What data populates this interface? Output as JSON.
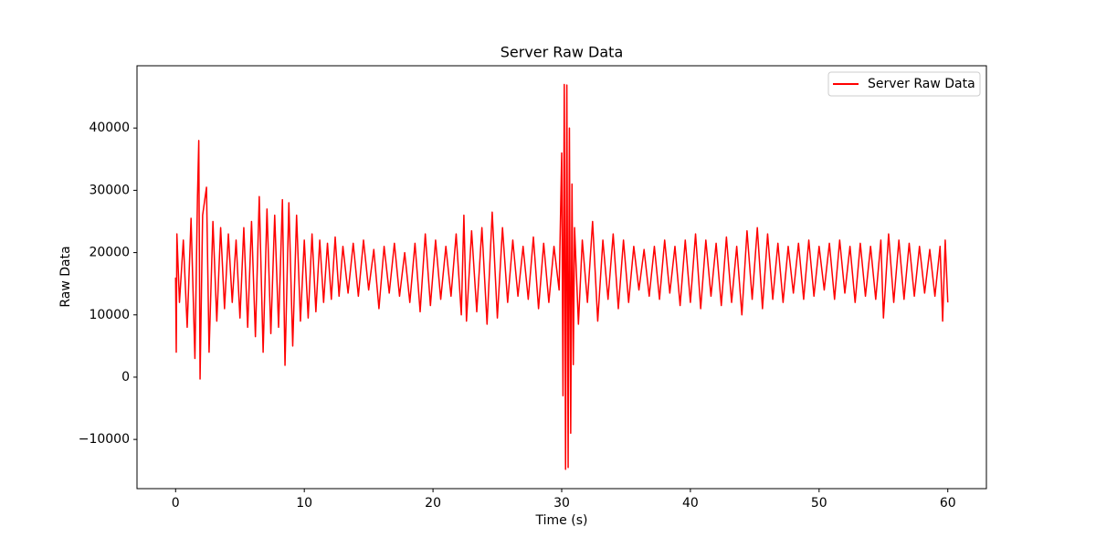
{
  "chart_data": {
    "type": "line",
    "title": "Server Raw Data",
    "x_label": "Time (s)",
    "y_label": "Raw Data",
    "x": [
      0,
      0.05,
      0.1,
      0.3,
      0.6,
      0.9,
      1.2,
      1.5,
      1.7,
      1.8,
      1.9,
      2.1,
      2.4,
      2.6,
      2.9,
      3.2,
      3.5,
      3.8,
      4.1,
      4.4,
      4.7,
      5.0,
      5.3,
      5.6,
      5.9,
      6.2,
      6.5,
      6.8,
      7.1,
      7.4,
      7.7,
      8.0,
      8.3,
      8.5,
      8.8,
      9.1,
      9.4,
      9.7,
      10.0,
      10.3,
      10.6,
      10.9,
      11.2,
      11.5,
      11.8,
      12.1,
      12.4,
      12.7,
      13.0,
      13.4,
      13.8,
      14.2,
      14.6,
      15.0,
      15.4,
      15.8,
      16.2,
      16.6,
      17.0,
      17.4,
      17.8,
      18.2,
      18.6,
      19.0,
      19.4,
      19.8,
      20.2,
      20.6,
      21.0,
      21.4,
      21.8,
      22.2,
      22.4,
      22.6,
      23.0,
      23.4,
      23.8,
      24.2,
      24.6,
      25.0,
      25.4,
      25.8,
      26.2,
      26.6,
      27.0,
      27.4,
      27.8,
      28.2,
      28.6,
      29.0,
      29.4,
      29.8,
      30.0,
      30.1,
      30.2,
      30.3,
      30.4,
      30.5,
      30.6,
      30.7,
      30.8,
      30.9,
      31.0,
      31.3,
      31.6,
      32.0,
      32.4,
      32.8,
      33.2,
      33.6,
      34.0,
      34.4,
      34.8,
      35.2,
      35.6,
      36.0,
      36.4,
      36.8,
      37.2,
      37.6,
      38.0,
      38.4,
      38.8,
      39.2,
      39.6,
      40.0,
      40.4,
      40.8,
      41.2,
      41.6,
      42.0,
      42.4,
      42.8,
      43.2,
      43.6,
      44.0,
      44.4,
      44.8,
      45.2,
      45.6,
      46.0,
      46.4,
      46.8,
      47.2,
      47.6,
      48.0,
      48.4,
      48.8,
      49.2,
      49.6,
      50.0,
      50.4,
      50.8,
      51.2,
      51.6,
      52.0,
      52.4,
      52.8,
      53.2,
      53.6,
      54.0,
      54.4,
      54.8,
      55.0,
      55.4,
      55.8,
      56.2,
      56.6,
      57.0,
      57.4,
      57.8,
      58.2,
      58.6,
      59.0,
      59.4,
      59.6,
      59.8,
      60.0
    ],
    "series": [
      {
        "name": "Server Raw Data",
        "color": "#ff0000",
        "values": [
          16000,
          4000,
          23000,
          12000,
          22000,
          8000,
          25500,
          3000,
          29000,
          38000,
          -300,
          26000,
          30500,
          4000,
          25000,
          9000,
          24000,
          11000,
          23000,
          12000,
          22000,
          9500,
          24000,
          8000,
          25000,
          6500,
          29000,
          4000,
          27000,
          7000,
          26000,
          8000,
          28500,
          1900,
          28000,
          5000,
          26000,
          9000,
          22000,
          9500,
          23000,
          10500,
          22000,
          12000,
          21500,
          12500,
          22500,
          13000,
          21000,
          13500,
          21500,
          13000,
          22000,
          14000,
          20500,
          11000,
          21000,
          13500,
          21500,
          13000,
          20000,
          12000,
          21500,
          10500,
          23000,
          11500,
          22000,
          12500,
          21000,
          13000,
          23000,
          10000,
          26000,
          9000,
          23500,
          10500,
          24000,
          8500,
          26500,
          9500,
          24000,
          12000,
          22000,
          13000,
          21000,
          12500,
          22500,
          11000,
          21500,
          12000,
          21000,
          14000,
          36000,
          -3000,
          47000,
          -14800,
          46900,
          -14500,
          40000,
          -9000,
          31000,
          2000,
          24000,
          8500,
          22000,
          12000,
          25000,
          9000,
          22000,
          12500,
          23000,
          11000,
          22000,
          12000,
          21000,
          14000,
          20500,
          13000,
          21000,
          12500,
          22000,
          13500,
          21000,
          11500,
          22000,
          12000,
          23000,
          11000,
          22000,
          13000,
          21500,
          11500,
          22500,
          12000,
          21000,
          10000,
          23500,
          12500,
          24000,
          11000,
          23000,
          12500,
          21500,
          12000,
          21000,
          13500,
          21500,
          12500,
          22000,
          13000,
          21000,
          14000,
          21500,
          12500,
          22000,
          13500,
          21000,
          12000,
          21500,
          13000,
          21000,
          12500,
          22000,
          9500,
          23000,
          12000,
          22000,
          12500,
          21500,
          13000,
          21000,
          13500,
          20500,
          13000,
          21000,
          9000,
          22000,
          12000
        ]
      }
    ],
    "xlim": [
      -3,
      63
    ],
    "ylim": [
      -17900,
      50000
    ],
    "xticks": [
      0,
      10,
      20,
      30,
      40,
      50,
      60
    ],
    "yticks": [
      {
        "value": -10000,
        "label": "−10000"
      },
      0,
      10000,
      20000,
      30000,
      40000
    ],
    "grid": false,
    "legend_position": "upper right"
  }
}
